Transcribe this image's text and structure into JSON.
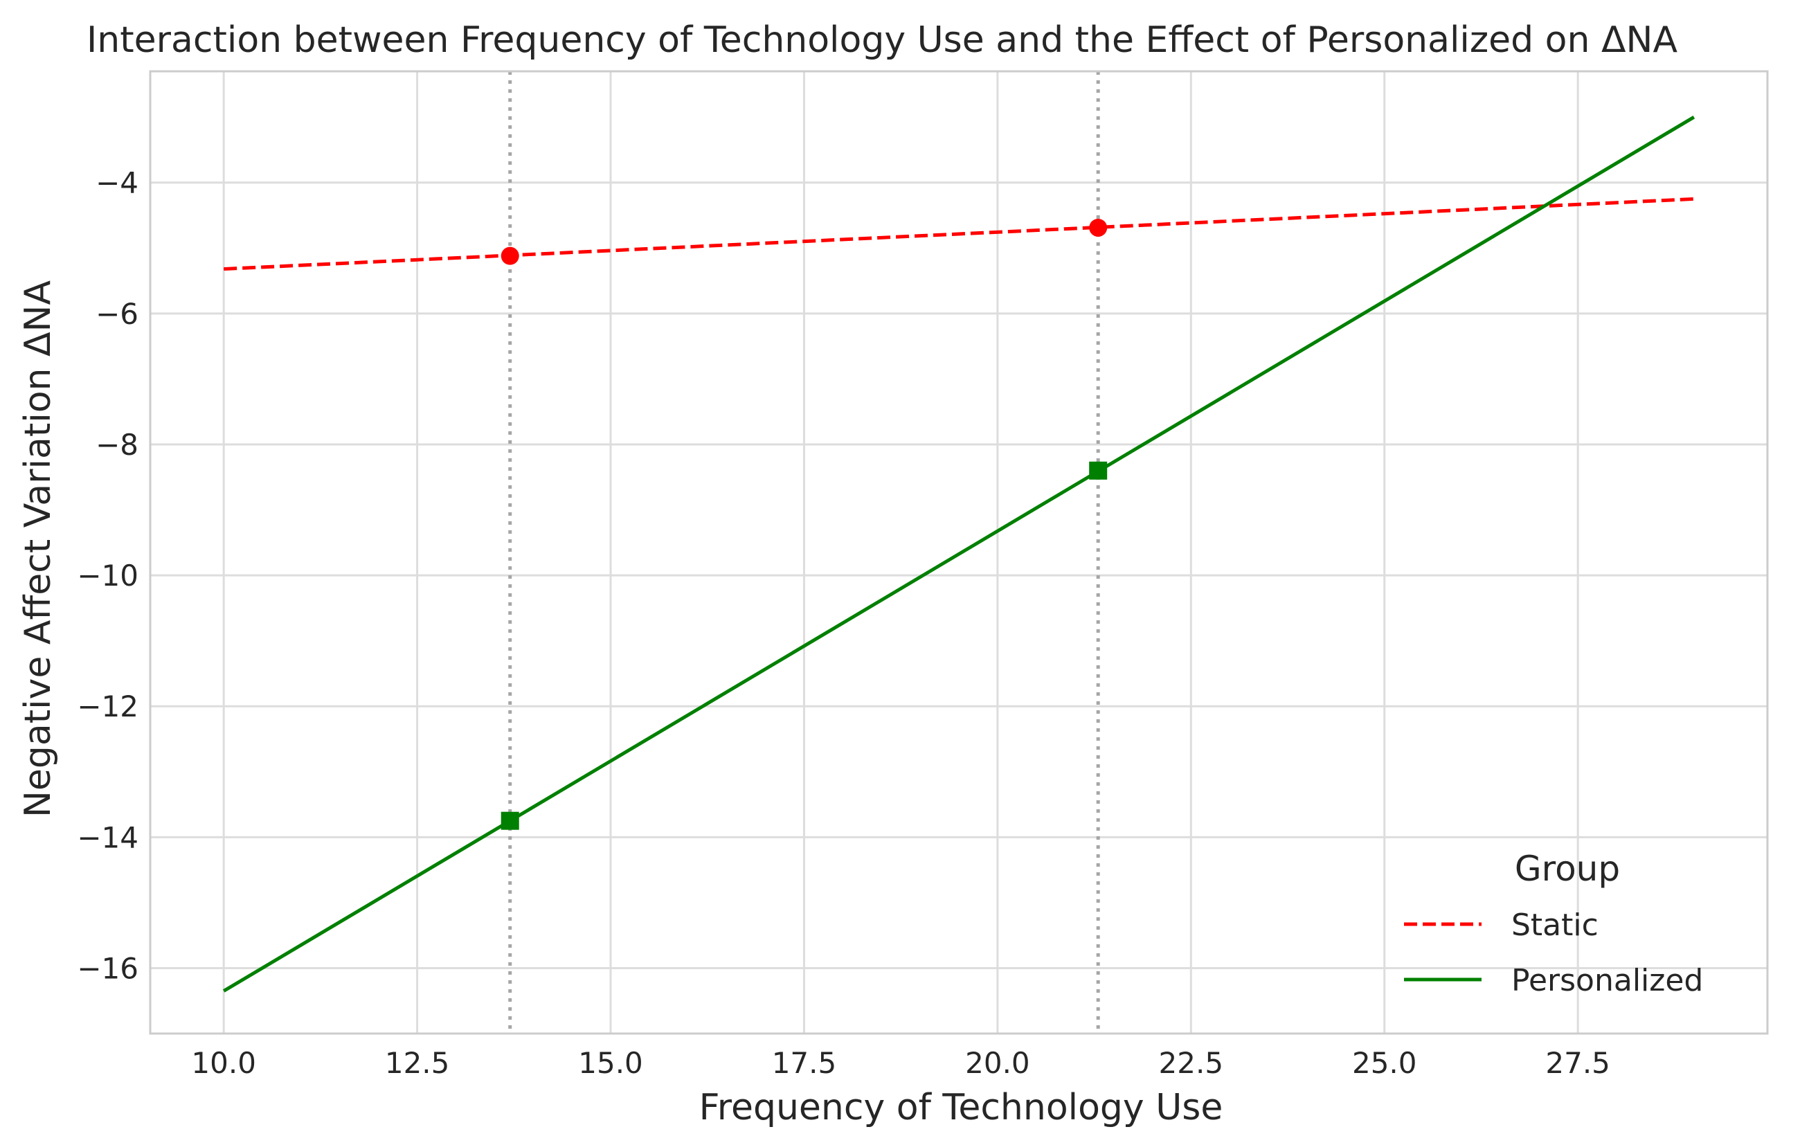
{
  "chart_data": {
    "type": "line",
    "title": "Interaction between Frequency of Technology Use and the Effect of Personalized on ΔNA",
    "xlabel": "Frequency of Technology Use",
    "ylabel": "Negative Affect Variation ΔNA",
    "xlim": [
      9.05,
      29.95
    ],
    "ylim": [
      -17.0,
      -2.3
    ],
    "x_ticks": [
      10.0,
      12.5,
      15.0,
      17.5,
      20.0,
      22.5,
      25.0,
      27.5
    ],
    "x_tick_labels": [
      "10.0",
      "12.5",
      "15.0",
      "17.5",
      "20.0",
      "22.5",
      "25.0",
      "27.5"
    ],
    "y_ticks": [
      -16,
      -14,
      -12,
      -10,
      -8,
      -6,
      -4
    ],
    "y_tick_labels": [
      "−16",
      "−14",
      "−12",
      "−10",
      "−8",
      "−6",
      "−4"
    ],
    "grid": true,
    "legend": {
      "title": "Group",
      "placement": "lower-right"
    },
    "vlines": [
      13.7,
      21.3
    ],
    "series": [
      {
        "name": "Static",
        "color": "#ff0000",
        "style": "dashed",
        "x": [
          10.0,
          29.0
        ],
        "y": [
          -5.32,
          -4.25
        ],
        "markers": {
          "shape": "circle",
          "x": [
            13.7,
            21.3
          ],
          "y": [
            -5.12,
            -4.69
          ]
        }
      },
      {
        "name": "Personalized",
        "color": "#008000",
        "style": "solid",
        "x": [
          10.0,
          29.0
        ],
        "y": [
          -16.35,
          -3.0
        ],
        "markers": {
          "shape": "square",
          "x": [
            13.7,
            21.3
          ],
          "y": [
            -13.75,
            -8.4
          ]
        }
      }
    ]
  }
}
